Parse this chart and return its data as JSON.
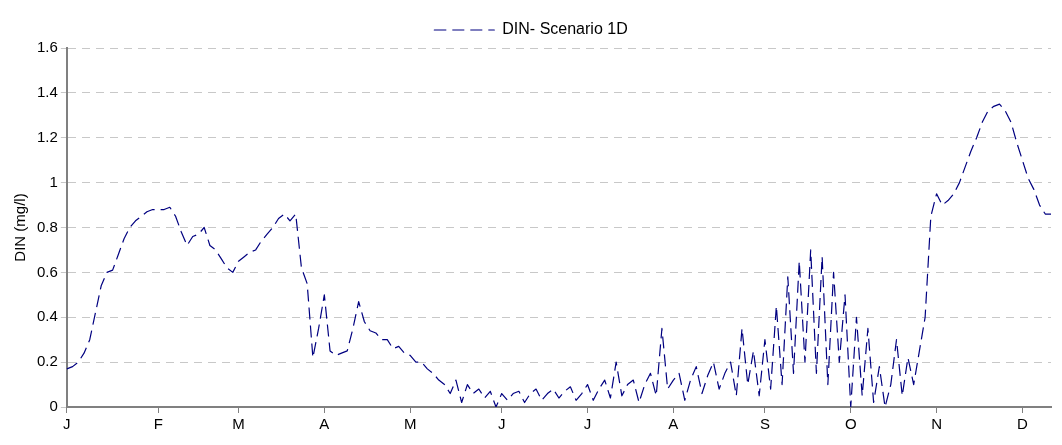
{
  "chart_data": {
    "type": "line",
    "ylabel": "DIN (mg/l)",
    "categories": [
      "J",
      null,
      null,
      null,
      null,
      null,
      null,
      null,
      null,
      null,
      null,
      null,
      null,
      null,
      null,
      null,
      "F",
      null,
      null,
      null,
      null,
      null,
      null,
      null,
      null,
      null,
      null,
      null,
      null,
      null,
      "M",
      null,
      null,
      null,
      null,
      null,
      null,
      null,
      null,
      null,
      null,
      null,
      null,
      null,
      null,
      "A",
      null,
      null,
      null,
      null,
      null,
      null,
      null,
      null,
      null,
      null,
      null,
      null,
      null,
      null,
      "M",
      null,
      null,
      null,
      null,
      null,
      null,
      null,
      null,
      null,
      null,
      null,
      null,
      null,
      null,
      null,
      "J",
      null,
      null,
      null,
      null,
      null,
      null,
      null,
      null,
      null,
      null,
      null,
      null,
      null,
      null,
      "J",
      null,
      null,
      null,
      null,
      null,
      null,
      null,
      null,
      null,
      null,
      null,
      null,
      null,
      null,
      "A",
      null,
      null,
      null,
      null,
      null,
      null,
      null,
      null,
      null,
      null,
      null,
      null,
      null,
      null,
      null,
      "S",
      null,
      null,
      null,
      null,
      null,
      null,
      null,
      null,
      null,
      null,
      null,
      null,
      null,
      null,
      "O",
      null,
      null,
      null,
      null,
      null,
      null,
      null,
      null,
      null,
      null,
      null,
      null,
      null,
      null,
      "N",
      null,
      null,
      null,
      null,
      null,
      null,
      null,
      null,
      null,
      null,
      null,
      null,
      null,
      null,
      "D",
      null,
      null,
      null,
      null,
      null
    ],
    "ylim": [
      0,
      1.6
    ],
    "yticks": [
      0,
      0.2,
      0.4,
      0.6,
      0.8,
      1,
      1.2,
      1.4,
      1.6
    ],
    "grid": "y",
    "legend": "top",
    "line_style": "dashed",
    "marker": "none",
    "series": [
      {
        "name": "DIN- Scenario 1D",
        "color": "#000080",
        "values": [
          0.17,
          0.18,
          0.2,
          0.24,
          0.3,
          0.42,
          0.54,
          0.6,
          0.61,
          0.68,
          0.75,
          0.8,
          0.83,
          0.85,
          0.87,
          0.88,
          0.88,
          0.88,
          0.89,
          0.85,
          0.78,
          0.72,
          0.76,
          0.77,
          0.8,
          0.72,
          0.7,
          0.66,
          0.62,
          0.6,
          0.65,
          0.67,
          0.69,
          0.7,
          0.74,
          0.77,
          0.8,
          0.84,
          0.86,
          0.83,
          0.86,
          0.62,
          0.55,
          0.22,
          0.35,
          0.5,
          0.25,
          0.23,
          0.24,
          0.25,
          0.35,
          0.47,
          0.38,
          0.34,
          0.33,
          0.3,
          0.3,
          0.26,
          0.27,
          0.24,
          0.23,
          0.2,
          0.2,
          0.17,
          0.15,
          0.12,
          0.1,
          0.06,
          0.12,
          0.02,
          0.1,
          0.06,
          0.08,
          0.04,
          0.07,
          0,
          0.06,
          0.03,
          0.06,
          0.07,
          0.02,
          0.06,
          0.08,
          0.03,
          0.06,
          0.08,
          0.04,
          0.07,
          0.09,
          0.03,
          0.06,
          0.1,
          0.03,
          0.08,
          0.12,
          0.04,
          0.2,
          0.05,
          0.1,
          0.12,
          0.02,
          0.1,
          0.15,
          0.05,
          0.35,
          0.08,
          0.12,
          0.15,
          0.03,
          0.12,
          0.18,
          0.06,
          0.14,
          0.2,
          0.08,
          0.15,
          0.2,
          0.05,
          0.35,
          0.1,
          0.25,
          0.05,
          0.3,
          0.08,
          0.45,
          0.1,
          0.58,
          0.15,
          0.65,
          0.2,
          0.7,
          0.15,
          0.67,
          0.1,
          0.6,
          0.2,
          0.5,
          0,
          0.4,
          0.05,
          0.35,
          0.02,
          0.18,
          0,
          0.1,
          0.3,
          0.05,
          0.22,
          0.1,
          0.25,
          0.4,
          0.85,
          0.95,
          0.9,
          0.92,
          0.95,
          1.0,
          1.07,
          1.14,
          1.2,
          1.27,
          1.32,
          1.34,
          1.35,
          1.32,
          1.27,
          1.18,
          1.1,
          1.02,
          0.97,
          0.9,
          0.86,
          0.86
        ]
      }
    ]
  }
}
